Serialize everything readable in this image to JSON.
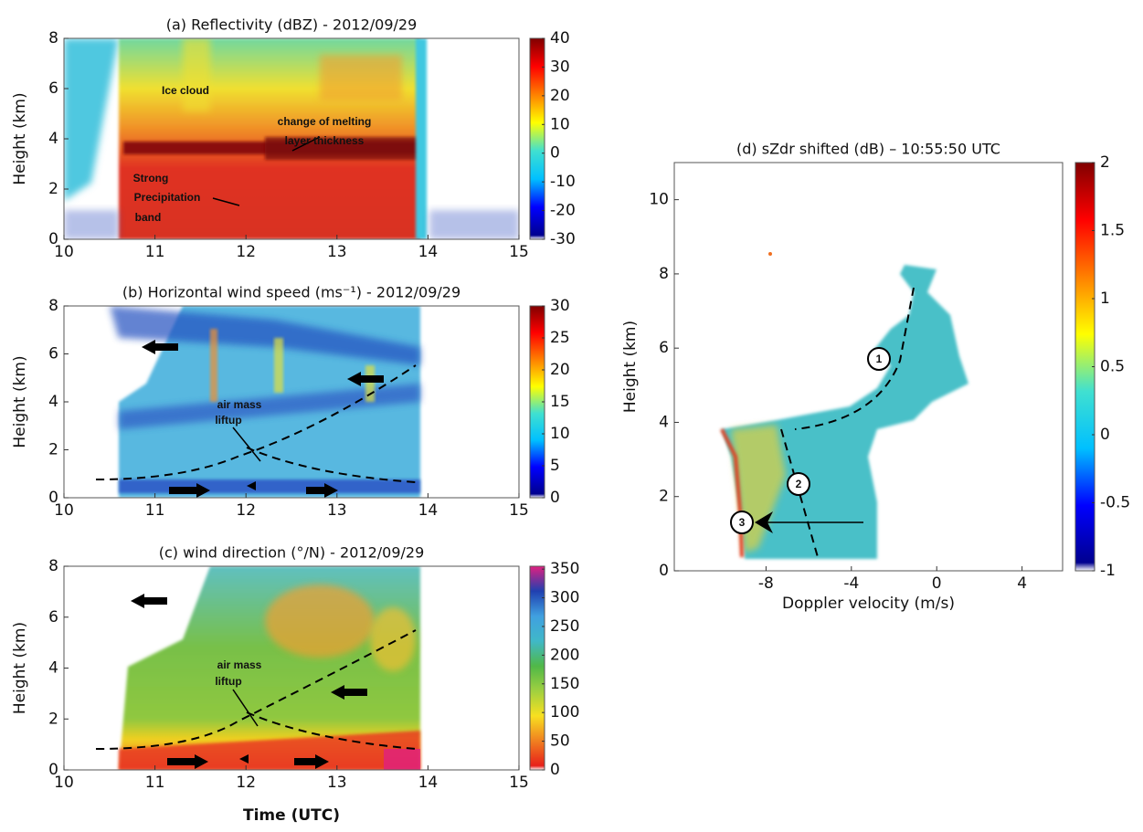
{
  "chart_data": [
    {
      "type": "heatmap",
      "title": "(a) Reflectivity (dBZ) - 2012/09/29",
      "ylabel": "Height (km)",
      "xlim": [
        10,
        15
      ],
      "ylim": [
        0,
        8
      ],
      "xticks": [
        10,
        11,
        12,
        13,
        14,
        15
      ],
      "yticks": [
        0,
        2,
        4,
        6,
        8
      ],
      "colorbar": {
        "clim": [
          -30,
          40
        ],
        "ticks": [
          40,
          30,
          20,
          10,
          0,
          -10,
          -20,
          -30
        ],
        "colormap": [
          "#ffffff",
          "#00008f",
          "#0000ff",
          "#00c0ff",
          "#40e0d0",
          "#ffff00",
          "#ff8000",
          "#ff0000",
          "#800000"
        ]
      },
      "annotations": [
        "Ice cloud",
        "change of melting",
        "layer thickness",
        "Strong",
        "Precipitation",
        "band"
      ]
    },
    {
      "type": "heatmap",
      "title": "(b) Horizontal wind speed (ms⁻¹) - 2012/09/29",
      "ylabel": "Height (km)",
      "xlim": [
        10,
        15
      ],
      "ylim": [
        0,
        8
      ],
      "xticks": [
        10,
        11,
        12,
        13,
        14,
        15
      ],
      "yticks": [
        0,
        2,
        4,
        6,
        8
      ],
      "colorbar": {
        "clim": [
          0,
          30
        ],
        "ticks": [
          30,
          25,
          20,
          15,
          10,
          5,
          0
        ],
        "colormap": [
          "#ffffff",
          "#00008f",
          "#0000ff",
          "#00c0ff",
          "#40e0d0",
          "#ffff00",
          "#ff8000",
          "#ff0000",
          "#800000"
        ]
      },
      "annotations": [
        "air mass",
        "liftup"
      ]
    },
    {
      "type": "heatmap",
      "title": "(c) wind direction (°/N)  - 2012/09/29",
      "ylabel": "Height (km)",
      "xlabel": "Time (UTC)",
      "xlim": [
        10,
        15
      ],
      "ylim": [
        0,
        8
      ],
      "xticks": [
        10,
        11,
        12,
        13,
        14,
        15
      ],
      "yticks": [
        0,
        2,
        4,
        6,
        8
      ],
      "colorbar": {
        "clim": [
          0,
          355
        ],
        "ticks": [
          350,
          300,
          250,
          200,
          150,
          100,
          50,
          0
        ],
        "colormap": [
          "#ffffff",
          "#e8201a",
          "#f08020",
          "#f8e020",
          "#a0d040",
          "#50b848",
          "#40b8c8",
          "#40a0e0",
          "#2040b0",
          "#e02080"
        ]
      },
      "annotations": [
        "air mass",
        "liftup"
      ]
    },
    {
      "type": "heatmap",
      "title": "(d) sZdr shifted (dB) – 10:55:50 UTC",
      "ylabel": "Height (km)",
      "xlabel": "Doppler velocity (m/s)",
      "xlim": [
        -12.3,
        5.9
      ],
      "ylim": [
        0,
        11
      ],
      "xticks": [
        -8,
        -4,
        0,
        4
      ],
      "yticks": [
        0,
        2,
        4,
        6,
        8,
        10
      ],
      "colorbar": {
        "clim": [
          -1,
          2
        ],
        "ticks": [
          2,
          1.5,
          1,
          0.5,
          0,
          -0.5,
          -1
        ],
        "colormap": [
          "#ffffff",
          "#00008f",
          "#0000ff",
          "#00c0ff",
          "#40e0d0",
          "#ffff00",
          "#ff8000",
          "#ff0000",
          "#800000"
        ]
      },
      "annotations": [
        "1",
        "2",
        "3"
      ]
    }
  ]
}
